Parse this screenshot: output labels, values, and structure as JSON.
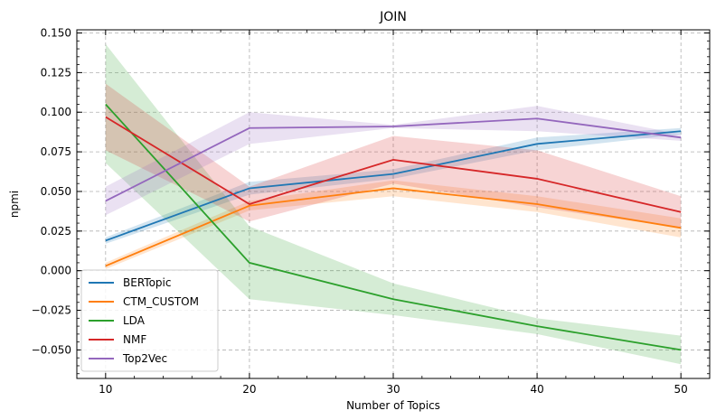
{
  "chart_data": {
    "type": "line",
    "title": "JOIN",
    "xlabel": "Number of Topics",
    "ylabel": "npmi",
    "x": [
      10,
      20,
      30,
      40,
      50
    ],
    "xlim": [
      8,
      52
    ],
    "ylim": [
      -0.068,
      0.152
    ],
    "xticks": [
      "10",
      "20",
      "30",
      "40",
      "50"
    ],
    "yticks": [
      "−0.050",
      "−0.025",
      "0.000",
      "0.025",
      "0.050",
      "0.075",
      "0.100",
      "0.125",
      "0.150"
    ],
    "ytick_values": [
      -0.05,
      -0.025,
      0.0,
      0.025,
      0.05,
      0.075,
      0.1,
      0.125,
      0.15
    ],
    "grid": true,
    "legend_position": "bottom-left",
    "series": [
      {
        "name": "BERTopic",
        "color": "#1f77b4",
        "values": [
          0.019,
          0.052,
          0.061,
          0.08,
          0.088
        ],
        "lower": [
          0.017,
          0.048,
          0.058,
          0.076,
          0.086
        ],
        "upper": [
          0.021,
          0.056,
          0.064,
          0.084,
          0.09
        ]
      },
      {
        "name": "CTM_CUSTOM",
        "color": "#ff7f0e",
        "values": [
          0.003,
          0.041,
          0.052,
          0.042,
          0.027
        ],
        "lower": [
          0.001,
          0.038,
          0.047,
          0.037,
          0.021
        ],
        "upper": [
          0.005,
          0.044,
          0.057,
          0.047,
          0.033
        ]
      },
      {
        "name": "LDA",
        "color": "#2ca02c",
        "values": [
          0.105,
          0.005,
          -0.018,
          -0.035,
          -0.05
        ],
        "lower": [
          0.068,
          -0.018,
          -0.028,
          -0.04,
          -0.059
        ],
        "upper": [
          0.143,
          0.028,
          -0.008,
          -0.03,
          -0.041
        ]
      },
      {
        "name": "NMF",
        "color": "#d62728",
        "values": [
          0.097,
          0.042,
          0.07,
          0.058,
          0.037
        ],
        "lower": [
          0.076,
          0.031,
          0.055,
          0.04,
          0.027
        ],
        "upper": [
          0.118,
          0.053,
          0.085,
          0.076,
          0.047
        ]
      },
      {
        "name": "Top2Vec",
        "color": "#9467bd",
        "values": [
          0.044,
          0.09,
          0.091,
          0.096,
          0.084
        ],
        "lower": [
          0.035,
          0.08,
          0.09,
          0.088,
          0.082
        ],
        "upper": [
          0.053,
          0.1,
          0.092,
          0.104,
          0.086
        ]
      }
    ]
  }
}
